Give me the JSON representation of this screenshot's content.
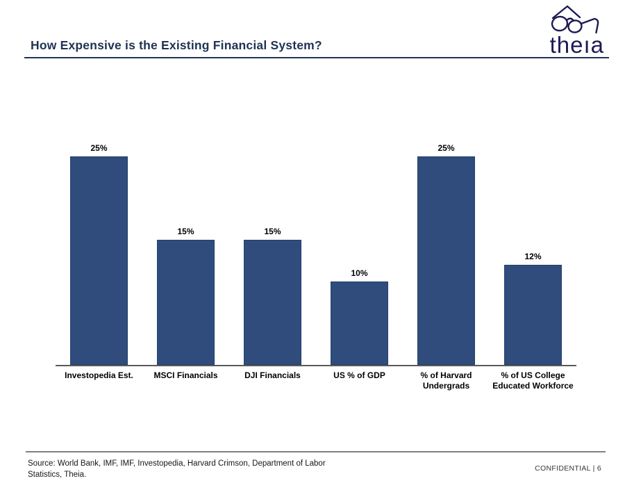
{
  "slide": {
    "title": "How Expensive is the Existing Financial System?",
    "logo_text": "theıa",
    "footer": {
      "source": "Source: World Bank, IMF, IMF, Investopedia, Harvard Crimson, Department of Labor Statistics, Theia.",
      "confidential": "CONFIDENTIAL | 6"
    }
  },
  "colors": {
    "title": "#1f3354",
    "rule": "#1f3354",
    "logo": "#1c1a54",
    "bar_fill": "#2f4c7d",
    "bar_border": "#24406a",
    "axis": "#595959",
    "footer_rule": "#7f7f7f"
  },
  "chart_data": {
    "type": "bar",
    "title": "How Expensive is the Existing Financial System?",
    "categories": [
      "Investopedia Est.",
      "MSCI Financials",
      "DJI Financials",
      "US % of GDP",
      "% of Harvard Undergrads",
      "% of US College Educated Workforce"
    ],
    "values": [
      25,
      15,
      15,
      10,
      25,
      12
    ],
    "value_labels": [
      "25%",
      "15%",
      "15%",
      "10%",
      "25%",
      "12%"
    ],
    "xlabel": "",
    "ylabel": "",
    "ylim": [
      0,
      30
    ],
    "unit": "percent",
    "grid": false,
    "legend": null,
    "bar_color": "#2f4c7d"
  }
}
